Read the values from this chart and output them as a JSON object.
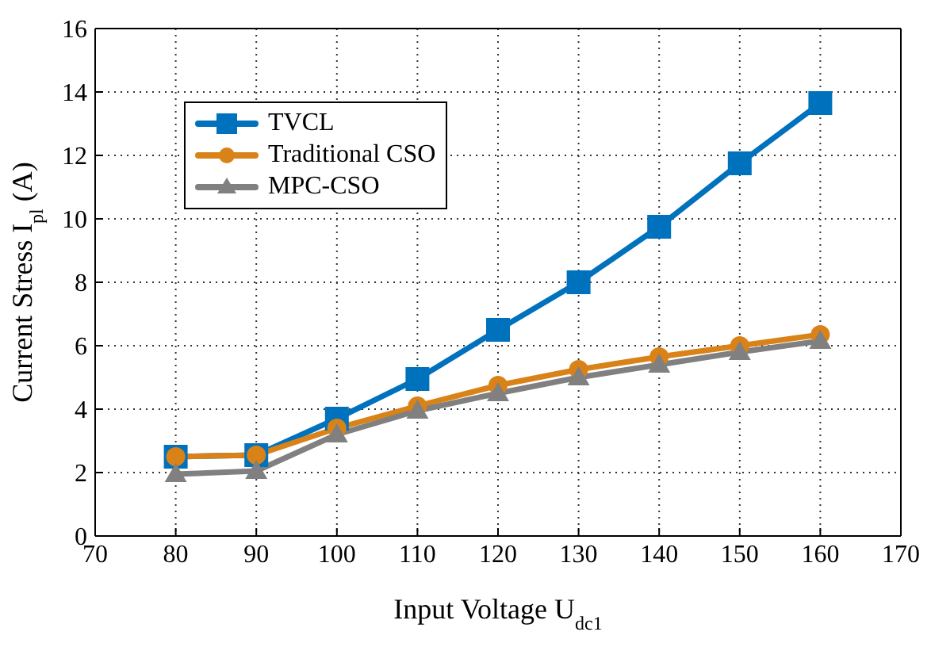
{
  "chart_data": {
    "type": "line",
    "xlabel": "Input Voltage U$_{dc1}$",
    "ylabel": "Current Stress I$_{pl}$ (A)",
    "x": [
      80,
      90,
      100,
      110,
      120,
      130,
      140,
      150,
      160
    ],
    "series": [
      {
        "name": "TVCL",
        "color": "#0072bd",
        "marker": "square",
        "values": [
          2.5,
          2.55,
          3.7,
          4.95,
          6.5,
          8.0,
          9.75,
          11.75,
          13.65
        ]
      },
      {
        "name": "Traditional CSO",
        "color": "#d98218",
        "marker": "circle",
        "values": [
          2.5,
          2.55,
          3.4,
          4.1,
          4.75,
          5.25,
          5.65,
          6.0,
          6.35
        ]
      },
      {
        "name": "MPC-CSO",
        "color": "#808080",
        "marker": "triangle",
        "values": [
          1.95,
          2.05,
          3.2,
          3.95,
          4.5,
          5.0,
          5.4,
          5.8,
          6.15
        ]
      }
    ],
    "xlim": [
      70,
      170
    ],
    "xticks": [
      70,
      80,
      90,
      100,
      110,
      120,
      130,
      140,
      150,
      160,
      170
    ],
    "ylim": [
      0,
      16
    ],
    "yticks": [
      0,
      2,
      4,
      6,
      8,
      10,
      12,
      14,
      16
    ],
    "grid": true,
    "legend": "top left",
    "line_style": "solid"
  }
}
